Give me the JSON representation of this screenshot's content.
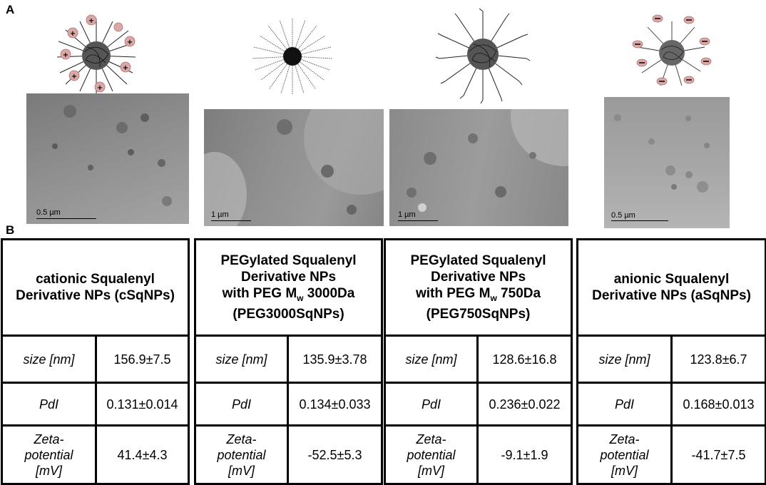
{
  "panels": {
    "a": "A",
    "b": "B"
  },
  "images": [
    {
      "scale_label": "0.5 µm"
    },
    {
      "scale_label": "1 µm"
    },
    {
      "scale_label": "1 µm"
    },
    {
      "scale_label": "0.5 µm"
    }
  ],
  "row_labels": {
    "size": "size [nm]",
    "pdi": "PdI",
    "zeta_line1": "Zeta-",
    "zeta_line2": "potential",
    "zeta_line3": "[mV]"
  },
  "nanoparticles": [
    {
      "header_lines": [
        "cationic Squalenyl",
        "Derivative NPs (cSqNPs)"
      ],
      "size": "156.9±7.5",
      "pdi": "0.131±0.014",
      "zeta": "41.4±4.3"
    },
    {
      "header_line1": "PEGylated Squalenyl",
      "header_line2": "Derivative NPs",
      "header_line3_pre": "with PEG M",
      "header_line3_sub": "w",
      "header_line3_post": " 3000Da",
      "header_line4": "(PEG3000SqNPs)",
      "size": "135.9±3.78",
      "pdi": "0.134±0.033",
      "zeta": "-52.5±5.3"
    },
    {
      "header_line1": "PEGylated Squalenyl",
      "header_line2": "Derivative NPs",
      "header_line3_pre": "with PEG M",
      "header_line3_sub": "w",
      "header_line3_post": " 750Da",
      "header_line4": "(PEG750SqNPs)",
      "size": "128.6±16.8",
      "pdi": "0.236±0.022",
      "zeta": "-9.1±1.9"
    },
    {
      "header_lines": [
        "anionic Squalenyl",
        "Derivative NPs (aSqNPs)"
      ],
      "size": "123.8±6.7",
      "pdi": "0.168±0.013",
      "zeta": "-41.7±7.5"
    }
  ]
}
